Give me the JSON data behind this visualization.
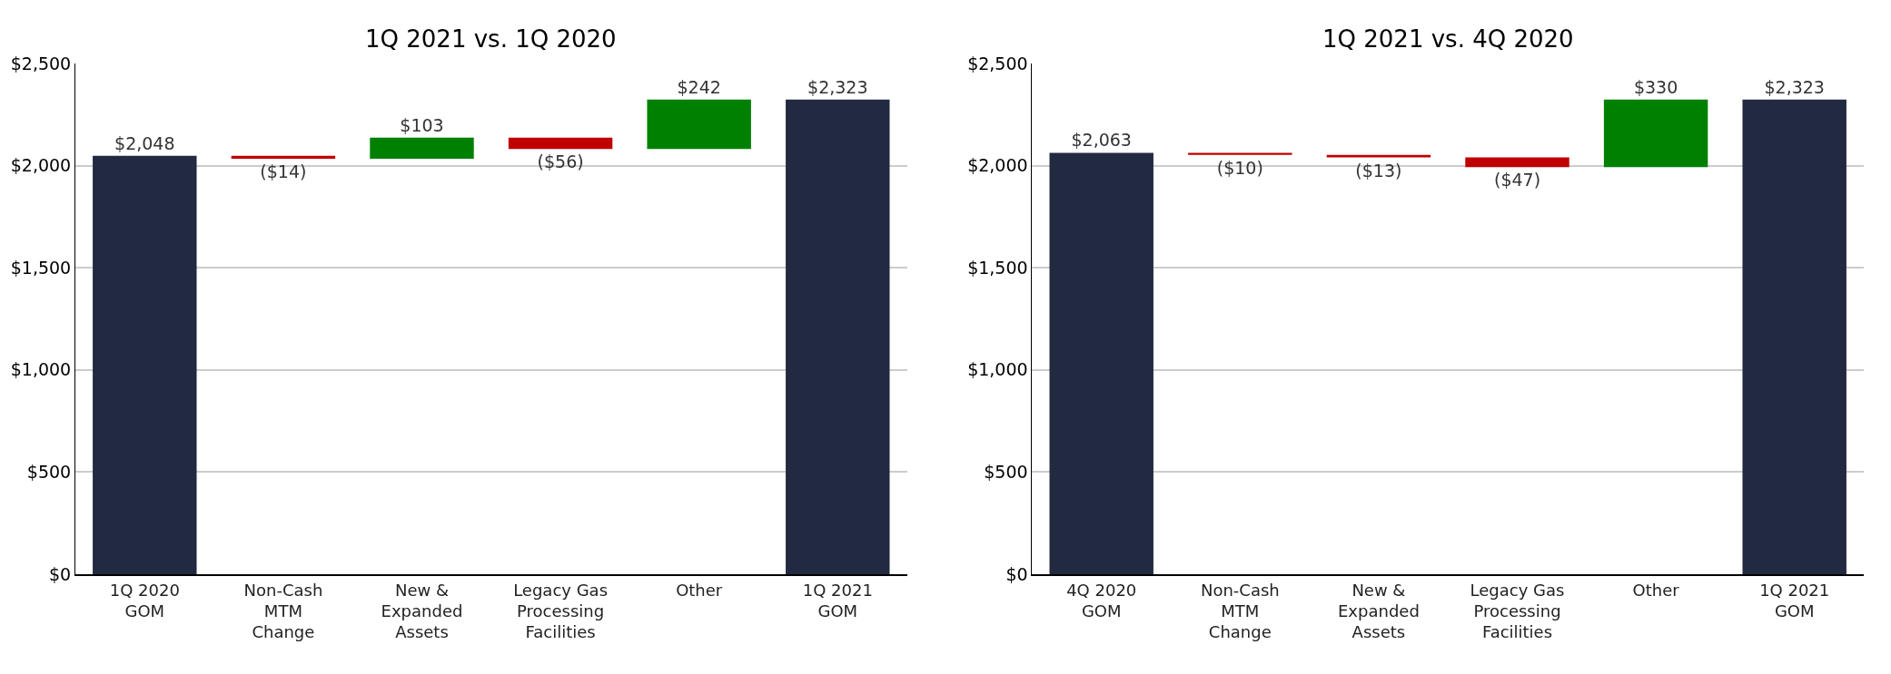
{
  "chart_data": [
    {
      "type": "bar",
      "title": "1Q 2021 vs. 1Q 2020",
      "categories": [
        "1Q 2020\nGOM",
        "Non-Cash\nMTM\nChange",
        "New &\nExpanded\nAssets",
        "Legacy Gas\nProcessing\nFacilities",
        "Other",
        "1Q 2021\nGOM"
      ],
      "values": [
        2048,
        -14,
        103,
        -56,
        242,
        2323
      ],
      "base": [
        0,
        2048,
        2034,
        2137,
        2081,
        0
      ],
      "colors": [
        "#222a42",
        "#c00000",
        "#008000",
        "#c00000",
        "#008000",
        "#222a42"
      ],
      "value_labels": [
        "$2,048",
        "($14)",
        "$103",
        "($56)",
        "$242",
        "$2,323"
      ],
      "ylim": [
        0,
        2500
      ],
      "yticks": [
        {
          "value": 0,
          "label": "$0"
        },
        {
          "value": 500,
          "label": "$500"
        },
        {
          "value": 1000,
          "label": "$1,000"
        },
        {
          "value": 1500,
          "label": "$1,500"
        },
        {
          "value": 2000,
          "label": "$2,000"
        },
        {
          "value": 2500,
          "label": "$2,500"
        }
      ],
      "grid": "y"
    },
    {
      "type": "bar",
      "title": "1Q 2021 vs. 4Q 2020",
      "categories": [
        "4Q 2020\nGOM",
        "Non-Cash\nMTM\nChange",
        "New &\nExpanded\nAssets",
        "Legacy Gas\nProcessing\nFacilities",
        "Other",
        "1Q 2021\nGOM"
      ],
      "values": [
        2063,
        -10,
        -13,
        -47,
        330,
        2323
      ],
      "base": [
        0,
        2063,
        2053,
        2040,
        1993,
        0
      ],
      "colors": [
        "#222a42",
        "#c00000",
        "#c00000",
        "#c00000",
        "#008000",
        "#222a42"
      ],
      "value_labels": [
        "$2,063",
        "($10)",
        "($13)",
        "($47)",
        "$330",
        "$2,323"
      ],
      "ylim": [
        0,
        2500
      ],
      "yticks": [
        {
          "value": 0,
          "label": "$0"
        },
        {
          "value": 500,
          "label": "$500"
        },
        {
          "value": 1000,
          "label": "$1,000"
        },
        {
          "value": 1500,
          "label": "$1,500"
        },
        {
          "value": 2000,
          "label": "$2,000"
        },
        {
          "value": 2500,
          "label": "$2,500"
        }
      ],
      "grid": "y"
    }
  ]
}
